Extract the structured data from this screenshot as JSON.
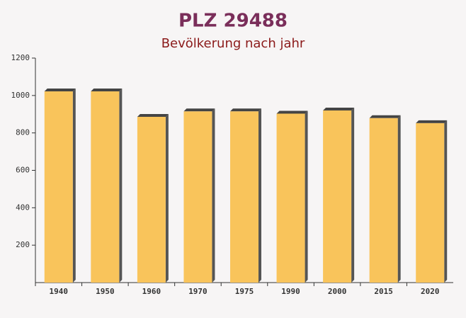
{
  "chart_data": {
    "type": "bar",
    "title": "PLZ 29488",
    "subtitle": "Bevölkerung nach jahr",
    "categories": [
      "1940",
      "1950",
      "1960",
      "1970",
      "1975",
      "1990",
      "2000",
      "2015",
      "2020"
    ],
    "values": [
      1022,
      1022,
      886,
      915,
      915,
      903,
      920,
      879,
      852
    ],
    "color": "#f9c45b",
    "ylim": [
      0,
      1200
    ],
    "yticks": [
      200,
      400,
      600,
      800,
      1000,
      1200
    ]
  }
}
